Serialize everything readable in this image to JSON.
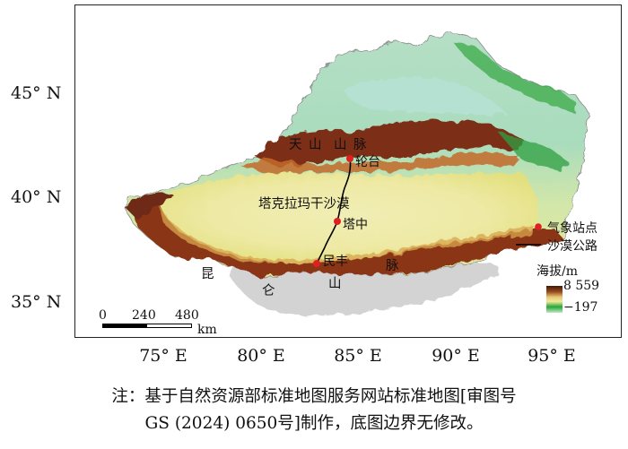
{
  "latitude_labels": [
    "45° N",
    "40° N",
    "35° N"
  ],
  "longitude_labels": [
    "75° E",
    "80° E",
    "85° E",
    "90° E",
    "95° E"
  ],
  "mountains": {
    "tianshan": [
      "天",
      "山",
      "山",
      "脉"
    ],
    "kunlun": [
      "昆",
      "仑",
      "山",
      "脉"
    ]
  },
  "desert_name": "塔克拉玛干沙漠",
  "stations": [
    {
      "name": "轮台"
    },
    {
      "name": "塔中"
    },
    {
      "name": "民丰"
    }
  ],
  "legend": {
    "station_label": "气象站点",
    "road_label": "沙漠公路",
    "elevation_title": "海拔/m",
    "elevation_max": "8 559",
    "elevation_min": "−197"
  },
  "scale_bar": {
    "ticks": [
      "0",
      "240",
      "480"
    ],
    "unit": "km"
  },
  "colors": {
    "station": "#e02020",
    "road": "#000000",
    "low_elevation": "#c2e8c5",
    "high_elevation": "#5a2a12"
  },
  "note": {
    "line1": "注：基于自然资源部标准地图服务网站标准地图[审图号",
    "line2": "GS (2024) 0650号]制作，底图边界无修改。"
  }
}
